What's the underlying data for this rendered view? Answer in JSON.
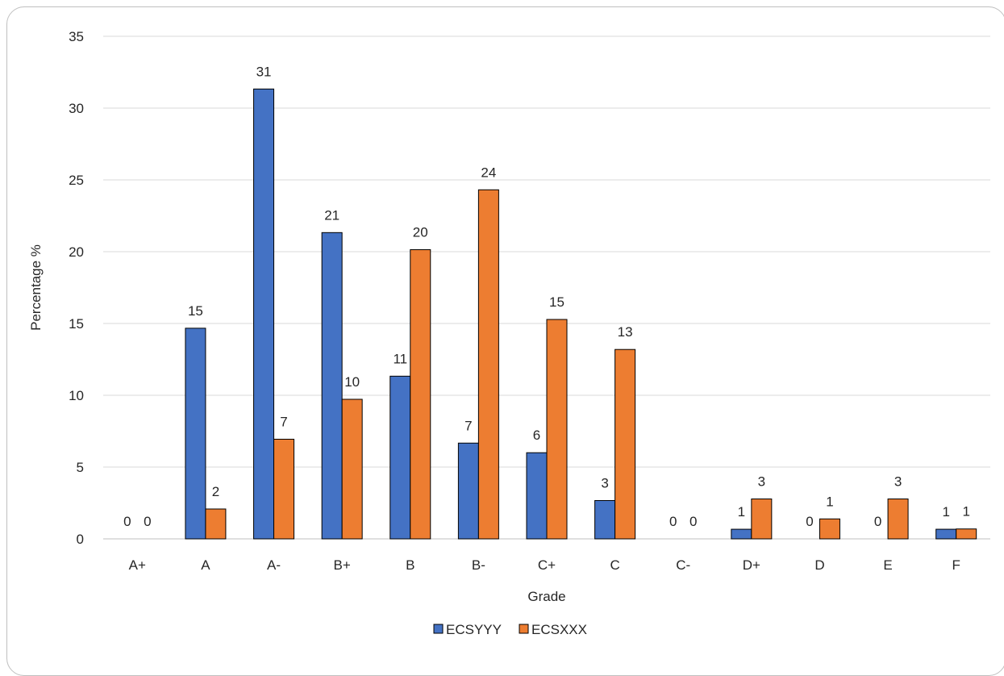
{
  "chart_data": {
    "type": "bar",
    "title": "",
    "xlabel": "Grade",
    "ylabel": "Percentage %",
    "ylim": [
      0,
      35
    ],
    "yticks": [
      0,
      5,
      10,
      15,
      20,
      25,
      30,
      35
    ],
    "grid": true,
    "legend_position": "bottom",
    "categories": [
      "A+",
      "A",
      "A-",
      "B+",
      "B",
      "B-",
      "C+",
      "C",
      "C-",
      "D+",
      "D",
      "E",
      "F"
    ],
    "series": [
      {
        "name": "ECSYYY",
        "color": "#4472c4",
        "values": [
          0,
          14.67,
          31.33,
          21.33,
          11.33,
          6.67,
          6.0,
          2.67,
          0,
          0.67,
          0,
          0,
          0.67
        ],
        "labels": [
          "0",
          "15",
          "31",
          "21",
          "11",
          "7",
          "6",
          "3",
          "0",
          "1",
          "0",
          "0",
          "1"
        ]
      },
      {
        "name": "ECSXXX",
        "color": "#ed7d31",
        "values": [
          0,
          2.08,
          6.94,
          9.72,
          20.14,
          24.31,
          15.28,
          13.19,
          0,
          2.78,
          1.39,
          2.78,
          0.69
        ],
        "labels": [
          "0",
          "2",
          "7",
          "10",
          "20",
          "24",
          "15",
          "13",
          "0",
          "3",
          "1",
          "3",
          "1"
        ]
      }
    ]
  }
}
